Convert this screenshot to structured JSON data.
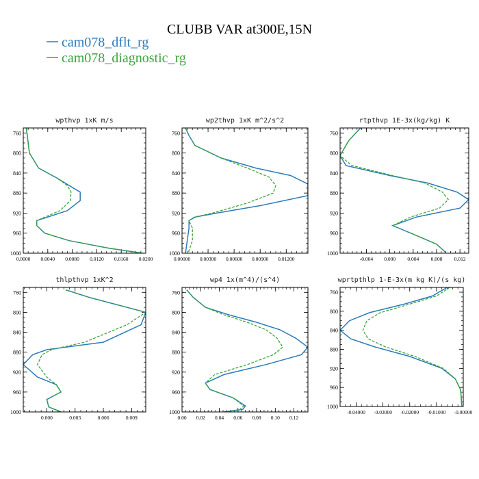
{
  "figure": {
    "title": "CLUBB VAR at300E,15N",
    "legend": [
      {
        "name": "cam078_dflt_rg",
        "color": "#2b7bb9",
        "dash": "solid"
      },
      {
        "name": "cam078_diagnostic_rg",
        "color": "#3aa63a",
        "dash": "dashed"
      }
    ]
  },
  "chart_data": [
    {
      "type": "line",
      "title": "wpthvp  1xK m/s",
      "xlim": [
        0.0,
        0.02
      ],
      "ylim": [
        1000,
        750
      ],
      "xticks": [
        0.0,
        0.004,
        0.008,
        0.012,
        0.016,
        0.02
      ],
      "xticklabels": [
        "0.0000",
        "0.0040",
        "0.0080",
        "0.0120",
        "0.0160",
        "0.0200"
      ],
      "yticks": [
        760,
        800,
        840,
        880,
        920,
        960,
        1000
      ],
      "yticklabels": [
        "760",
        "800",
        "840",
        "880",
        "920",
        "960",
        "1000"
      ],
      "series": [
        {
          "name": "cam078_dflt_rg",
          "color": "#2b7bb9",
          "dash": "solid",
          "x": [
            0.0005,
            0.0007,
            0.001,
            0.0025,
            0.0055,
            0.0075,
            0.0093,
            0.0093,
            0.0072,
            0.0022,
            0.0022,
            0.0035,
            0.0075,
            0.014,
            0.0195
          ],
          "y": [
            750,
            770,
            800,
            830,
            850,
            865,
            878,
            895,
            915,
            935,
            945,
            960,
            975,
            990,
            1000
          ]
        },
        {
          "name": "cam078_diagnostic_rg",
          "color": "#3aa63a",
          "dash": "dashed",
          "x": [
            0.0005,
            0.0007,
            0.001,
            0.0025,
            0.0055,
            0.0072,
            0.0078,
            0.0077,
            0.006,
            0.0022,
            0.0022,
            0.0035,
            0.0075,
            0.014,
            0.0195
          ],
          "y": [
            750,
            770,
            800,
            830,
            850,
            865,
            878,
            895,
            915,
            935,
            945,
            960,
            975,
            990,
            1000
          ]
        }
      ]
    },
    {
      "type": "line",
      "title": "wp2thvp  1xK m^2/s^2",
      "xlim": [
        0.0,
        0.0145
      ],
      "ylim": [
        1000,
        750
      ],
      "xticks": [
        0.0,
        0.003,
        0.006,
        0.009,
        0.012
      ],
      "xticklabels": [
        "0.00000",
        "0.00300",
        "0.00600",
        "0.00900",
        "0.01200"
      ],
      "yticks": [
        760,
        800,
        840,
        880,
        920,
        960,
        1000
      ],
      "yticklabels": [
        "760",
        "800",
        "840",
        "880",
        "920",
        "960",
        "1000"
      ],
      "series": [
        {
          "name": "cam078_dflt_rg",
          "color": "#2b7bb9",
          "dash": "solid",
          "x": [
            0.0004,
            0.0008,
            0.0015,
            0.0045,
            0.0085,
            0.0125,
            0.0145,
            0.0145,
            0.009,
            0.004,
            0.0015,
            0.0008,
            0.0008,
            0.0006,
            0.0004
          ],
          "y": [
            750,
            765,
            785,
            810,
            830,
            845,
            862,
            885,
            905,
            920,
            928,
            935,
            950,
            975,
            1000
          ]
        },
        {
          "name": "cam078_diagnostic_rg",
          "color": "#3aa63a",
          "dash": "dashed",
          "x": [
            0.0004,
            0.0008,
            0.0015,
            0.0045,
            0.0075,
            0.01,
            0.0108,
            0.0105,
            0.0075,
            0.0035,
            0.0014,
            0.0008,
            0.0012,
            0.0012,
            0.0007
          ],
          "y": [
            750,
            765,
            785,
            810,
            830,
            848,
            865,
            880,
            900,
            920,
            928,
            935,
            950,
            975,
            1000
          ]
        }
      ]
    },
    {
      "type": "line",
      "title": "rtpthvp  1E-3x(kg/kg) K",
      "xlim": [
        -0.0085,
        0.0135
      ],
      "ylim": [
        1000,
        750
      ],
      "xticks": [
        -0.004,
        0.0,
        0.004,
        0.008,
        0.012
      ],
      "xticklabels": [
        "-0.004",
        "0.000",
        "0.004",
        "0.008",
        "0.012"
      ],
      "yticks": [
        760,
        800,
        840,
        880,
        920,
        960,
        1000
      ],
      "yticklabels": [
        "760",
        "800",
        "840",
        "880",
        "920",
        "960",
        "1000"
      ],
      "series": [
        {
          "name": "cam078_dflt_rg",
          "color": "#2b7bb9",
          "dash": "solid",
          "x": [
            -0.005,
            -0.007,
            -0.0085,
            -0.0075,
            0.0,
            0.0065,
            0.0115,
            0.0135,
            0.012,
            0.0045,
            0.0005,
            0.004,
            0.008,
            0.0095
          ],
          "y": [
            750,
            775,
            805,
            825,
            845,
            860,
            878,
            893,
            910,
            928,
            945,
            962,
            982,
            998
          ]
        },
        {
          "name": "cam078_diagnostic_rg",
          "color": "#3aa63a",
          "dash": "dashed",
          "x": [
            -0.005,
            -0.007,
            -0.0085,
            -0.0065,
            0.0005,
            0.006,
            0.009,
            0.01,
            0.0085,
            0.0035,
            0.0005,
            0.004,
            0.008,
            0.0095
          ],
          "y": [
            750,
            775,
            805,
            825,
            845,
            860,
            878,
            893,
            910,
            928,
            945,
            962,
            982,
            998
          ]
        }
      ]
    },
    {
      "type": "line",
      "title": "thlpthvp  1xK^2",
      "xlim": [
        -0.0025,
        0.0105
      ],
      "ylim": [
        1000,
        750
      ],
      "xticks": [
        0.0,
        0.003,
        0.006,
        0.009
      ],
      "xticklabels": [
        "0.000",
        "0.003",
        "0.006",
        "0.009"
      ],
      "yticks": [
        760,
        800,
        840,
        880,
        920,
        960,
        1000
      ],
      "yticklabels": [
        "760",
        "800",
        "840",
        "880",
        "920",
        "960",
        "1000"
      ],
      "series": [
        {
          "name": "cam078_dflt_rg",
          "color": "#2b7bb9",
          "dash": "solid",
          "x": [
            0.002,
            0.0045,
            0.0075,
            0.0105,
            0.01,
            0.006,
            0.0,
            -0.0015,
            -0.0025,
            -0.001,
            0.001,
            0.0015,
            0.0,
            0.0002,
            0.0015
          ],
          "y": [
            755,
            770,
            785,
            800,
            825,
            860,
            875,
            885,
            905,
            930,
            945,
            960,
            975,
            990,
            1000
          ]
        },
        {
          "name": "cam078_diagnostic_rg",
          "color": "#3aa63a",
          "dash": "dashed",
          "x": [
            0.002,
            0.0045,
            0.0075,
            0.0105,
            0.0085,
            0.004,
            0.0005,
            -0.0005,
            -0.001,
            0.0,
            0.001,
            0.0015,
            0.0,
            0.0002,
            0.0015
          ],
          "y": [
            755,
            770,
            785,
            800,
            825,
            860,
            875,
            885,
            905,
            930,
            945,
            960,
            975,
            990,
            1000
          ]
        }
      ]
    },
    {
      "type": "line",
      "title": "wp4  1x(m^4)/(s^4)",
      "xlim": [
        0.0,
        0.135
      ],
      "ylim": [
        1000,
        750
      ],
      "xticks": [
        0.0,
        0.02,
        0.04,
        0.06,
        0.08,
        0.1,
        0.12
      ],
      "xticklabels": [
        "0.00",
        "0.02",
        "0.04",
        "0.06",
        "0.08",
        "0.10",
        "0.12"
      ],
      "yticks": [
        760,
        800,
        840,
        880,
        920,
        960,
        1000
      ],
      "yticklabels": [
        "760",
        "800",
        "840",
        "880",
        "920",
        "960",
        "1000"
      ],
      "series": [
        {
          "name": "cam078_dflt_rg",
          "color": "#2b7bb9",
          "dash": "solid",
          "x": [
            0.005,
            0.012,
            0.025,
            0.05,
            0.08,
            0.105,
            0.122,
            0.135,
            0.128,
            0.09,
            0.045,
            0.025,
            0.03,
            0.055,
            0.068,
            0.065,
            0.045
          ],
          "y": [
            755,
            770,
            790,
            805,
            820,
            835,
            852,
            870,
            885,
            905,
            925,
            942,
            955,
            972,
            988,
            995,
            1000
          ]
        },
        {
          "name": "cam078_diagnostic_rg",
          "color": "#3aa63a",
          "dash": "dashed",
          "x": [
            0.005,
            0.012,
            0.025,
            0.045,
            0.07,
            0.09,
            0.102,
            0.108,
            0.098,
            0.07,
            0.035,
            0.025,
            0.03,
            0.055,
            0.066,
            0.062,
            0.045
          ],
          "y": [
            755,
            770,
            790,
            805,
            820,
            835,
            852,
            870,
            885,
            905,
            925,
            942,
            955,
            972,
            988,
            995,
            1000
          ]
        }
      ]
    },
    {
      "type": "line",
      "title": "wprtpthlp  1-E-3x(m kg K)/(s kg)",
      "xlim": [
        -0.046,
        0.0
      ],
      "ylim": [
        1000,
        750
      ],
      "xticks": [
        -0.04,
        -0.03,
        -0.02,
        -0.01,
        0.0
      ],
      "xticklabels": [
        "-0.04000",
        "-0.03000",
        "-0.02000",
        "-0.01000",
        "-0.00000"
      ],
      "yticks": [
        760,
        800,
        840,
        880,
        920,
        960,
        1000
      ],
      "yticklabels": [
        "760",
        "800",
        "840",
        "880",
        "920",
        "960",
        "1000"
      ],
      "series": [
        {
          "name": "cam078_dflt_rg",
          "color": "#2b7bb9",
          "dash": "solid",
          "x": [
            -0.006,
            -0.0115,
            -0.022,
            -0.035,
            -0.0425,
            -0.046,
            -0.042,
            -0.033,
            -0.02,
            -0.008,
            -0.003,
            -0.001,
            -0.0005
          ],
          "y": [
            750,
            768,
            785,
            803,
            820,
            840,
            858,
            875,
            895,
            920,
            942,
            965,
            1000
          ]
        },
        {
          "name": "cam078_diagnostic_rg",
          "color": "#3aa63a",
          "dash": "dashed",
          "x": [
            -0.005,
            -0.01,
            -0.02,
            -0.031,
            -0.036,
            -0.0375,
            -0.0355,
            -0.029,
            -0.018,
            -0.0075,
            -0.003,
            -0.001,
            -0.0005
          ],
          "y": [
            750,
            768,
            785,
            803,
            820,
            840,
            858,
            875,
            895,
            920,
            942,
            965,
            1000
          ]
        }
      ]
    }
  ]
}
